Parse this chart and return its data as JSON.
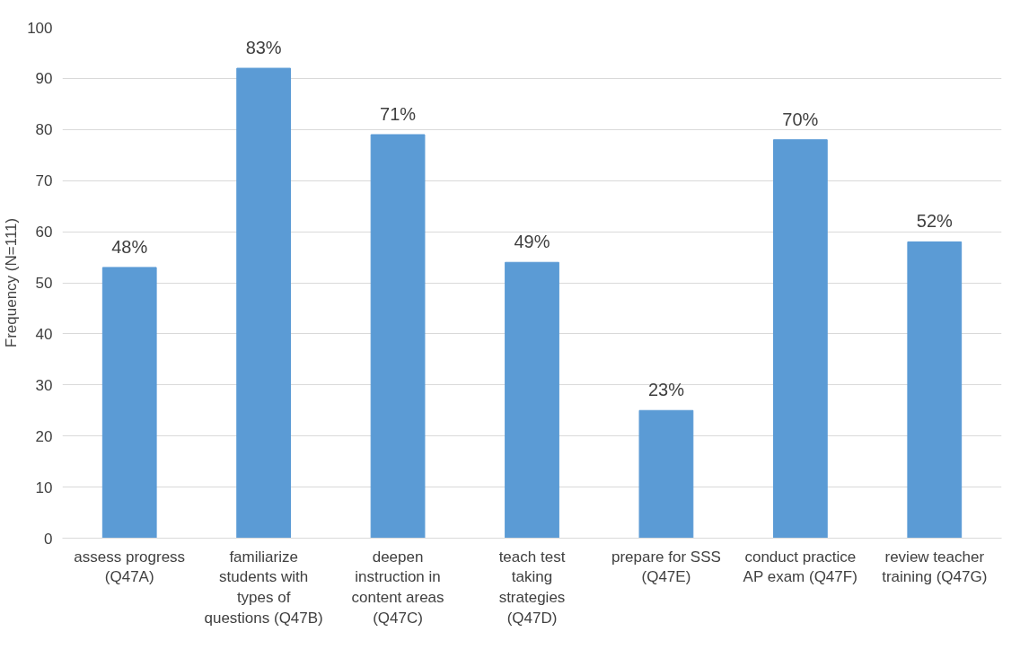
{
  "chart_data": {
    "type": "bar",
    "ylabel": "Frequency (N=111)",
    "categories": [
      "assess progress (Q47A)",
      "familiarize students with types of questions (Q47B)",
      "deepen instruction in content areas (Q47C)",
      "teach test taking strategies (Q47D)",
      "prepare for SSS (Q47E)",
      "conduct practice AP exam (Q47F)",
      "review teacher training (Q47G)"
    ],
    "values": [
      53,
      92,
      79,
      54,
      25,
      78,
      58
    ],
    "annotations": [
      {
        "text": "48%",
        "x": "assess progress (Q47A)",
        "y": 53
      },
      {
        "text": "83%",
        "x": "familiarize students with types of questions (Q47B)",
        "y": 92
      },
      {
        "text": "71%",
        "x": "deepen instruction in content areas (Q47C)",
        "y": 79
      },
      {
        "text": "49%",
        "x": "teach test taking strategies (Q47D)",
        "y": 54
      },
      {
        "text": "23%",
        "x": "prepare for SSS (Q47E)",
        "y": 25
      },
      {
        "text": "70%",
        "x": "conduct practice AP exam (Q47F)",
        "y": 78
      },
      {
        "text": "52%",
        "x": "review teacher training (Q47G)",
        "y": 58
      }
    ],
    "color": "#5b9bd5",
    "ylim": [
      0,
      100
    ],
    "yticks": [
      0,
      10,
      20,
      30,
      40,
      50,
      60,
      70,
      80,
      90,
      100
    ],
    "grid": "y"
  }
}
